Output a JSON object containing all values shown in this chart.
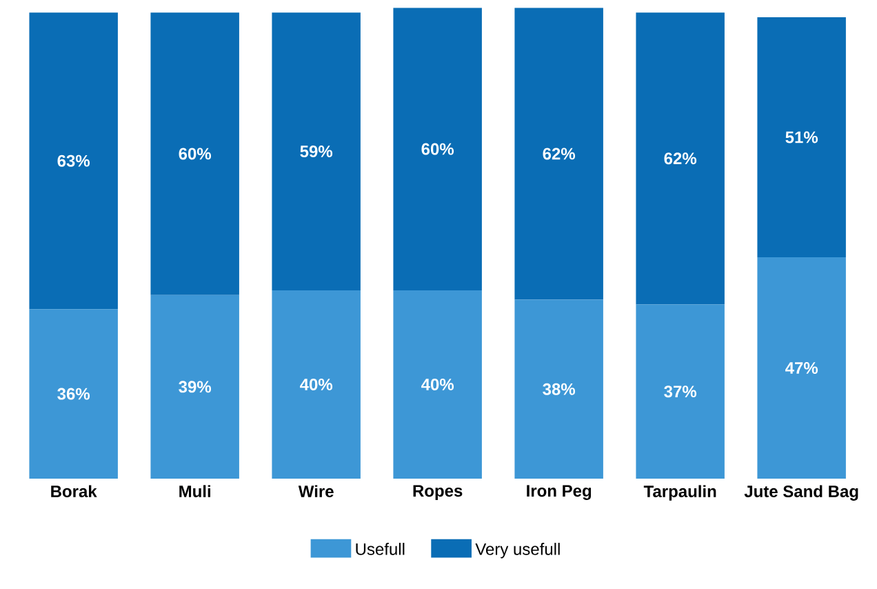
{
  "chart_data": {
    "type": "bar",
    "stacked": true,
    "categories": [
      "Borak",
      "Muli",
      "Wire",
      "Ropes",
      "Iron Peg",
      "Tarpaulin",
      "Jute Sand Bag"
    ],
    "series": [
      {
        "name": "Usefull",
        "color": "#3d97d6",
        "values": [
          36,
          39,
          40,
          40,
          38,
          37,
          47
        ],
        "value_labels": [
          "36%",
          "39%",
          "40%",
          "40%",
          "38%",
          "37%",
          "47%"
        ]
      },
      {
        "name": "Very usefull",
        "color": "#0a6db5",
        "values": [
          63,
          60,
          59,
          60,
          62,
          62,
          51
        ],
        "value_labels": [
          "63%",
          "60%",
          "59%",
          "60%",
          "62%",
          "62%",
          "51%"
        ]
      }
    ],
    "legend": "bottom"
  }
}
